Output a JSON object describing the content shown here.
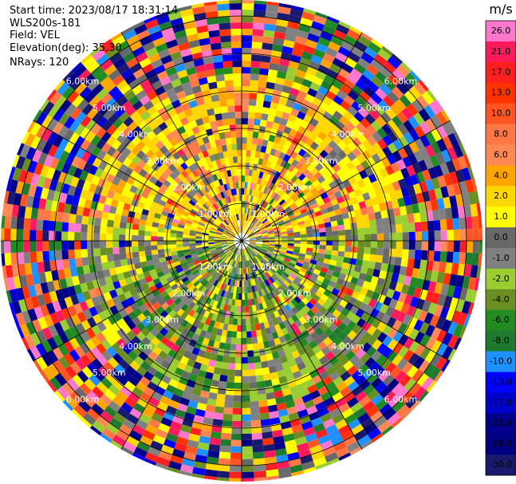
{
  "header": {
    "start_time": "Start time: 2023/08/17 18:31:14",
    "station": "WLS200s-181",
    "field": "Field: VEL",
    "elevation": "Elevation(deg): 35.30",
    "nrays": "NRays: 120"
  },
  "chart_data": {
    "type": "heatmap",
    "projection": "polar (PPI)",
    "field": "VEL",
    "units": "m/s",
    "nrays": 120,
    "elevation_deg": 35.3,
    "range_rings_km": [
      1.0,
      2.0,
      3.0,
      4.0,
      5.0,
      6.0
    ],
    "range_ring_labels": [
      "1.00km",
      "2.00km",
      "3.00km",
      "4.00km",
      "5.00km",
      "6.00km"
    ],
    "spokes_every_deg": 30,
    "colorbar": {
      "unit": "m/s",
      "ticks": [
        "26.0",
        "21.0",
        "17.0",
        "13.0",
        "10.0",
        "8.0",
        "6.0",
        "4.0",
        "2.0",
        "1.0",
        "0.0",
        "-1.0",
        "-2.0",
        "-4.0",
        "-6.0",
        "-8.0",
        "-10.0",
        "-13.0",
        "-17.0",
        "-21.0",
        "-26.0",
        "-30.0"
      ],
      "colors": [
        "#ff77cc",
        "#ff1a5c",
        "#ff1f1f",
        "#ff3300",
        "#ff5522",
        "#ff7744",
        "#ff8855",
        "#ffa500",
        "#ffd700",
        "#ffff00",
        "#696969",
        "#808080",
        "#9acd32",
        "#6b8e23",
        "#228b22",
        "#1e7a2e",
        "#1e90ff",
        "#0000ff",
        "#0000cd",
        "#00008b",
        "#000080",
        "#191970"
      ]
    },
    "pattern": {
      "inner_north_upper_half": "mostly light positive velocity (yellow / orange), about 1-6 m/s",
      "inner_south_lower_half": "mostly light negative velocity (green / grey), about 0 to -6 m/s",
      "outer_ranges": "noise (all colors)"
    }
  }
}
